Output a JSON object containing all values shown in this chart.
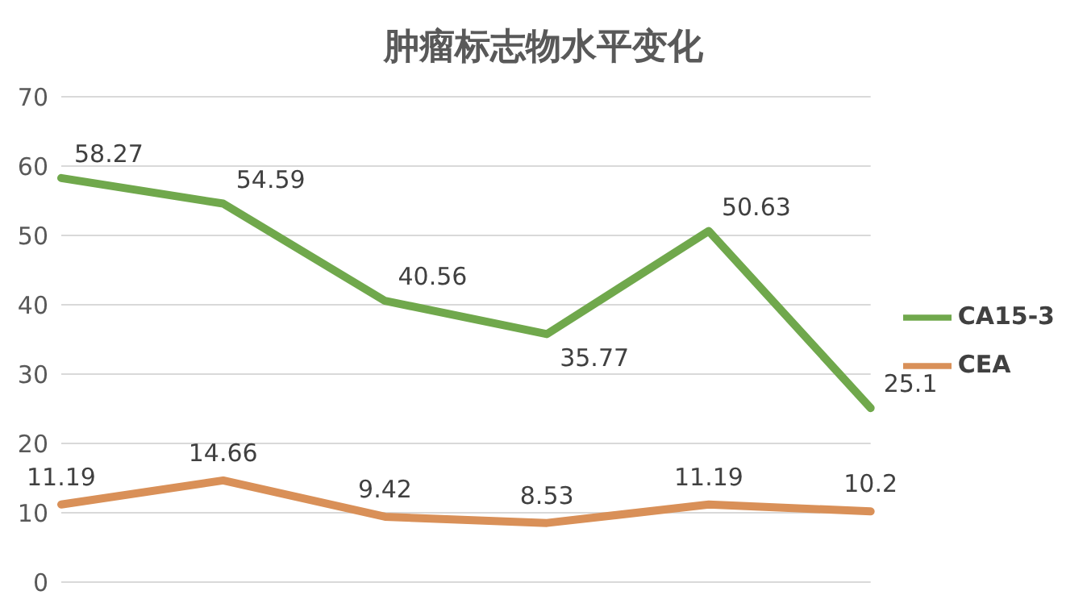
{
  "chart_data": {
    "type": "line",
    "title": "肿瘤标志物水平变化",
    "categories": [
      null,
      null,
      null,
      null,
      null,
      null
    ],
    "series": [
      {
        "name": "CA15-3",
        "color": "#70a84c",
        "values": [
          58.27,
          54.59,
          40.56,
          35.77,
          50.63,
          25.1
        ]
      },
      {
        "name": "CEA",
        "color": "#d99058",
        "values": [
          11.19,
          14.66,
          9.42,
          8.53,
          11.19,
          10.2
        ]
      }
    ],
    "ylim": [
      0,
      70
    ],
    "yticks": [
      0,
      10,
      20,
      30,
      40,
      50,
      60,
      70
    ],
    "grid": "y",
    "legend": "right",
    "data_labels": true,
    "marker": "none",
    "line_style": "solid"
  }
}
